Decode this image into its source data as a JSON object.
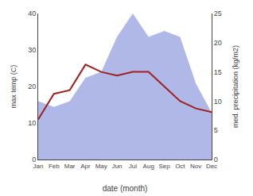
{
  "chart_data": {
    "type": "line",
    "xlabel": "date (month)",
    "ylabel": "max temp (C)",
    "y2label": "med. precipitation (kg/m2)",
    "categories": [
      "Jan",
      "Feb",
      "Mar",
      "Apr",
      "May",
      "Jun",
      "Jul",
      "Aug",
      "Sep",
      "Oct",
      "Nov",
      "Dec"
    ],
    "series": [
      {
        "type": "area",
        "axis": "y2",
        "color": "#b0b8e8",
        "values": [
          10,
          9,
          10,
          14,
          15,
          21,
          25,
          21,
          22,
          21,
          13,
          8
        ]
      },
      {
        "type": "line",
        "color": "#a02020",
        "values": [
          11,
          18,
          19,
          26,
          24,
          23,
          24,
          24,
          20,
          16,
          14,
          13
        ]
      }
    ],
    "ylim": [
      0,
      40
    ],
    "yticks": [
      0,
      10,
      20,
      30,
      40
    ],
    "y2lim": [
      0,
      25
    ],
    "y2ticks": [
      0,
      5,
      10,
      15,
      20,
      25
    ],
    "grid": false
  }
}
